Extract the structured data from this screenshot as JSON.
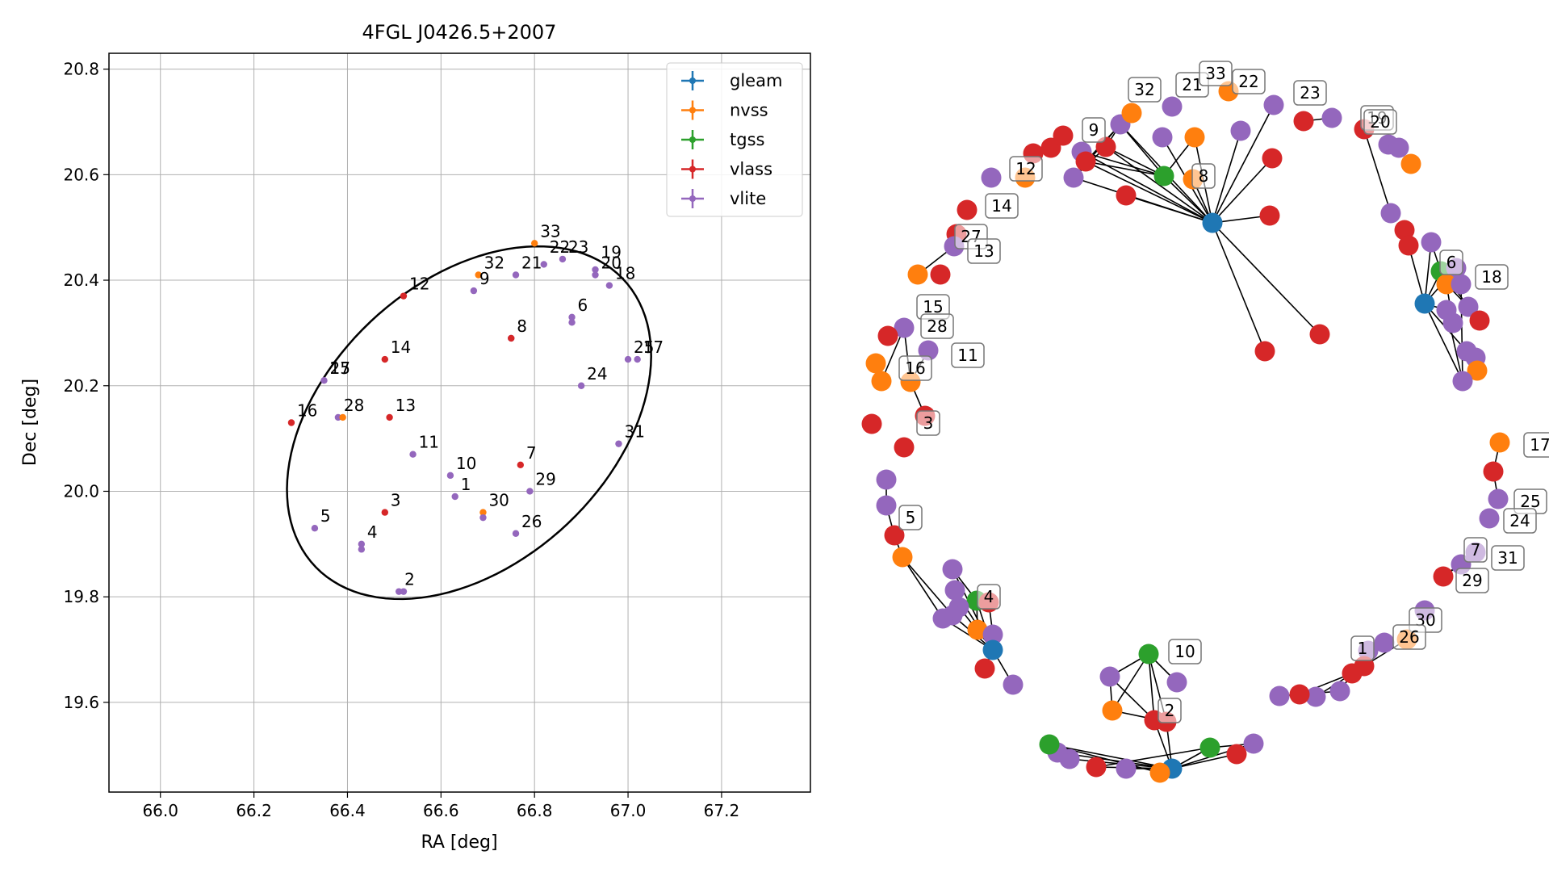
{
  "colors": {
    "gleam": "#1f77b4",
    "nvss": "#ff7f0e",
    "tgss": "#2ca02c",
    "vlass": "#d62728",
    "vlite": "#9467bd",
    "grid": "#b0b0b0",
    "ellipse": "#000000"
  },
  "chart_data": [
    {
      "type": "scatter",
      "title": "4FGL J0426.5+2007",
      "xlabel": "RA [deg]",
      "ylabel": "Dec [deg]",
      "xlim": [
        65.89,
        67.39
      ],
      "ylim": [
        19.43,
        20.83
      ],
      "xticks": [
        "66.0",
        "66.2",
        "66.4",
        "66.6",
        "66.8",
        "67.0",
        "67.2"
      ],
      "xtick_values": [
        66.0,
        66.2,
        66.4,
        66.6,
        66.8,
        67.0,
        67.2
      ],
      "yticks": [
        "19.6",
        "19.8",
        "20.0",
        "20.2",
        "20.4",
        "20.6",
        "20.8"
      ],
      "ytick_values": [
        19.6,
        19.8,
        20.0,
        20.2,
        20.4,
        20.6,
        20.8
      ],
      "grid": true,
      "legend_position": "top-right",
      "legend": [
        "gleam",
        "nvss",
        "tgss",
        "vlass",
        "vlite"
      ],
      "ellipse": {
        "center_ra": 66.66,
        "center_dec": 20.13,
        "semi_major_deg": 0.43,
        "semi_minor_deg": 0.28,
        "angle_deg": 34
      },
      "points": [
        {
          "ra": 66.67,
          "dec": 20.38,
          "cat": "vlite"
        },
        {
          "ra": 66.68,
          "dec": 20.41,
          "cat": "nvss"
        },
        {
          "ra": 66.75,
          "dec": 20.29,
          "cat": "vlite"
        },
        {
          "ra": 66.75,
          "dec": 20.29,
          "cat": "vlass"
        },
        {
          "ra": 66.8,
          "dec": 20.47,
          "cat": "nvss"
        },
        {
          "ra": 66.82,
          "dec": 20.43,
          "cat": "vlite"
        },
        {
          "ra": 66.86,
          "dec": 20.44,
          "cat": "vlite"
        },
        {
          "ra": 66.76,
          "dec": 20.41,
          "cat": "vlite"
        },
        {
          "ra": 66.88,
          "dec": 20.33,
          "cat": "vlite"
        },
        {
          "ra": 66.88,
          "dec": 20.32,
          "cat": "vlite"
        },
        {
          "ra": 66.93,
          "dec": 20.42,
          "cat": "vlite"
        },
        {
          "ra": 66.93,
          "dec": 20.41,
          "cat": "vlite"
        },
        {
          "ra": 66.96,
          "dec": 20.39,
          "cat": "vlite"
        },
        {
          "ra": 66.52,
          "dec": 20.37,
          "cat": "vlass"
        },
        {
          "ra": 66.48,
          "dec": 20.25,
          "cat": "vlass"
        },
        {
          "ra": 66.35,
          "dec": 20.21,
          "cat": "vlite"
        },
        {
          "ra": 66.28,
          "dec": 20.13,
          "cat": "vlass"
        },
        {
          "ra": 66.38,
          "dec": 20.14,
          "cat": "vlite"
        },
        {
          "ra": 66.39,
          "dec": 20.14,
          "cat": "nvss"
        },
        {
          "ra": 66.49,
          "dec": 20.14,
          "cat": "vlass"
        },
        {
          "ra": 66.54,
          "dec": 20.07,
          "cat": "vlite"
        },
        {
          "ra": 66.62,
          "dec": 20.03,
          "cat": "vlite"
        },
        {
          "ra": 66.63,
          "dec": 19.99,
          "cat": "vlite"
        },
        {
          "ra": 66.77,
          "dec": 20.05,
          "cat": "vlass"
        },
        {
          "ra": 66.79,
          "dec": 20.0,
          "cat": "vlite"
        },
        {
          "ra": 66.9,
          "dec": 20.2,
          "cat": "vlite"
        },
        {
          "ra": 67.0,
          "dec": 20.25,
          "cat": "vlite"
        },
        {
          "ra": 67.02,
          "dec": 20.25,
          "cat": "vlite"
        },
        {
          "ra": 66.98,
          "dec": 20.09,
          "cat": "vlite"
        },
        {
          "ra": 66.69,
          "dec": 19.96,
          "cat": "nvss"
        },
        {
          "ra": 66.69,
          "dec": 19.95,
          "cat": "vlite"
        },
        {
          "ra": 66.76,
          "dec": 19.92,
          "cat": "vlite"
        },
        {
          "ra": 66.48,
          "dec": 19.96,
          "cat": "vlass"
        },
        {
          "ra": 66.33,
          "dec": 19.93,
          "cat": "vlite"
        },
        {
          "ra": 66.43,
          "dec": 19.9,
          "cat": "vlite"
        },
        {
          "ra": 66.43,
          "dec": 19.89,
          "cat": "vlite"
        },
        {
          "ra": 66.51,
          "dec": 19.81,
          "cat": "vlite"
        },
        {
          "ra": 66.52,
          "dec": 19.81,
          "cat": "vlite"
        }
      ],
      "labels": [
        {
          "text": "33",
          "ra": 66.8,
          "dec": 20.47
        },
        {
          "text": "32",
          "ra": 66.68,
          "dec": 20.41
        },
        {
          "text": "9",
          "ra": 66.67,
          "dec": 20.38
        },
        {
          "text": "21",
          "ra": 66.76,
          "dec": 20.41
        },
        {
          "text": "22",
          "ra": 66.82,
          "dec": 20.44
        },
        {
          "text": "23",
          "ra": 66.86,
          "dec": 20.44
        },
        {
          "text": "19",
          "ra": 66.93,
          "dec": 20.43
        },
        {
          "text": "20",
          "ra": 66.93,
          "dec": 20.41
        },
        {
          "text": "18",
          "ra": 66.96,
          "dec": 20.39
        },
        {
          "text": "12",
          "ra": 66.52,
          "dec": 20.37
        },
        {
          "text": "8",
          "ra": 66.75,
          "dec": 20.29
        },
        {
          "text": "6",
          "ra": 66.88,
          "dec": 20.33
        },
        {
          "text": "14",
          "ra": 66.48,
          "dec": 20.25
        },
        {
          "text": "15",
          "ra": 66.35,
          "dec": 20.21
        },
        {
          "text": "27",
          "ra": 66.35,
          "dec": 20.21
        },
        {
          "text": "25",
          "ra": 67.0,
          "dec": 20.25
        },
        {
          "text": "17",
          "ra": 67.02,
          "dec": 20.25
        },
        {
          "text": "24",
          "ra": 66.9,
          "dec": 20.2
        },
        {
          "text": "16",
          "ra": 66.28,
          "dec": 20.13
        },
        {
          "text": "28",
          "ra": 66.38,
          "dec": 20.14
        },
        {
          "text": "13",
          "ra": 66.49,
          "dec": 20.14
        },
        {
          "text": "31",
          "ra": 66.98,
          "dec": 20.09
        },
        {
          "text": "11",
          "ra": 66.54,
          "dec": 20.07
        },
        {
          "text": "10",
          "ra": 66.62,
          "dec": 20.03
        },
        {
          "text": "7",
          "ra": 66.77,
          "dec": 20.05
        },
        {
          "text": "1",
          "ra": 66.63,
          "dec": 19.99
        },
        {
          "text": "29",
          "ra": 66.79,
          "dec": 20.0
        },
        {
          "text": "30",
          "ra": 66.69,
          "dec": 19.96
        },
        {
          "text": "3",
          "ra": 66.48,
          "dec": 19.96
        },
        {
          "text": "5",
          "ra": 66.33,
          "dec": 19.93
        },
        {
          "text": "26",
          "ra": 66.76,
          "dec": 19.92
        },
        {
          "text": "4",
          "ra": 66.43,
          "dec": 19.9
        },
        {
          "text": "2",
          "ra": 66.51,
          "dec": 19.81
        }
      ]
    }
  ],
  "graph": {
    "labels": [
      "32",
      "21",
      "33",
      "22",
      "23",
      "19",
      "20",
      "9",
      "8",
      "12",
      "14",
      "27",
      "13",
      "15",
      "28",
      "11",
      "16",
      "3",
      "6",
      "18",
      "17",
      "25",
      "24",
      "7",
      "31",
      "29",
      "30",
      "1",
      "26",
      "10",
      "2",
      "4",
      "5"
    ]
  }
}
